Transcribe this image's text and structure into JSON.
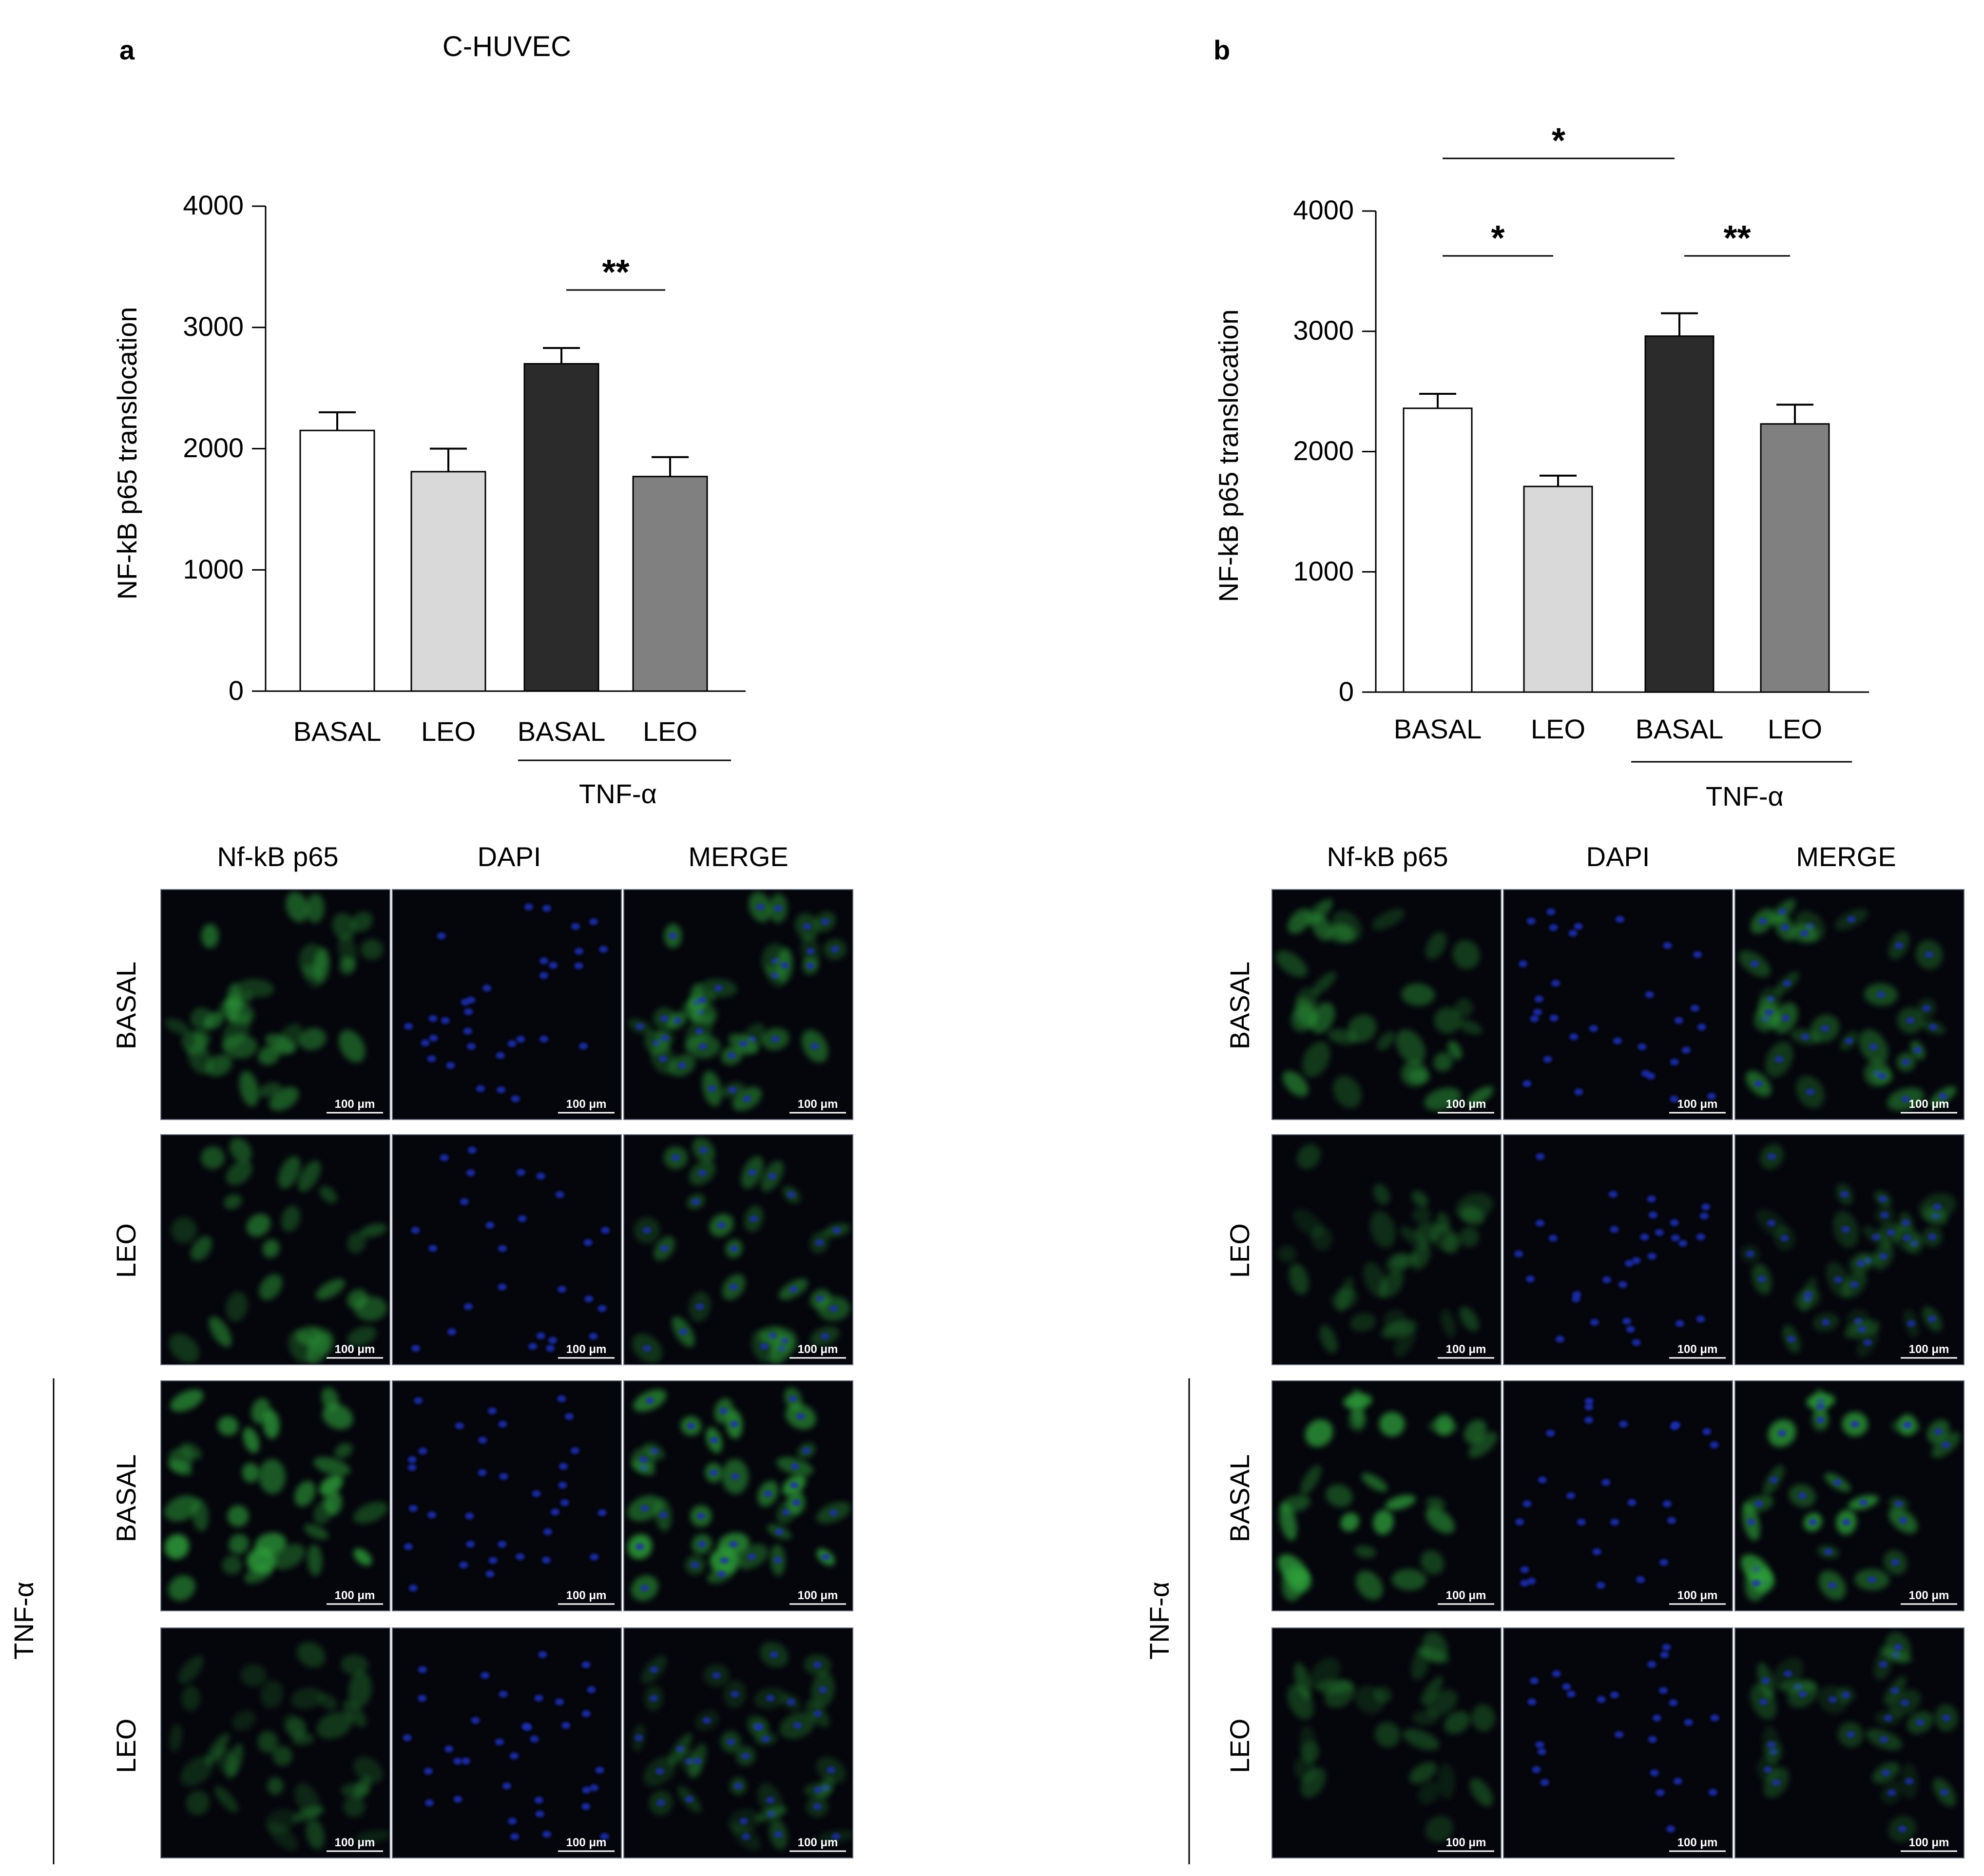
{
  "panels": [
    {
      "letter": "a",
      "title": "C-HUVEC",
      "chart_data": {
        "type": "bar",
        "categories": [
          "BASAL",
          "LEO",
          "BASAL",
          "LEO"
        ],
        "values": [
          2150,
          1810,
          2700,
          1770
        ],
        "errors": [
          150,
          190,
          130,
          160
        ],
        "bar_colors": [
          "#ffffff",
          "#d9d9d9",
          "#2b2b2b",
          "#808080"
        ],
        "ylabel": "NF-kB p65 translocation",
        "ylim": [
          0,
          4000
        ],
        "yticks": [
          "0",
          "1000",
          "2000",
          "3000",
          "4000"
        ],
        "group_label": "TNF-α",
        "significance": [
          {
            "from": 2,
            "to": 3,
            "label": "**"
          }
        ]
      }
    },
    {
      "letter": "b",
      "title": "",
      "chart_data": {
        "type": "bar",
        "categories": [
          "BASAL",
          "LEO",
          "BASAL",
          "LEO"
        ],
        "values": [
          2360,
          1710,
          2960,
          2230
        ],
        "errors": [
          120,
          90,
          190,
          160
        ],
        "bar_colors": [
          "#ffffff",
          "#d9d9d9",
          "#2b2b2b",
          "#808080"
        ],
        "ylabel": "NF-kB p65 translocation",
        "ylim": [
          0,
          4000
        ],
        "yticks": [
          "0",
          "1000",
          "2000",
          "3000",
          "4000"
        ],
        "group_label": "TNF-α",
        "significance": [
          {
            "from": 0,
            "to": 1,
            "label": "*"
          },
          {
            "from": 2,
            "to": 3,
            "label": "**"
          },
          {
            "from": 0,
            "to": 2,
            "label": "*"
          }
        ]
      }
    }
  ],
  "micrographs": {
    "columns": [
      "Nf-kB p65",
      "DAPI",
      "MERGE"
    ],
    "rows": [
      "BASAL",
      "LEO",
      "BASAL",
      "LEO"
    ],
    "group_label": "TNF-α",
    "scale_text": "100 μm",
    "channel_colors": {
      "green": "#2f9e3a",
      "blue": "#1c2fb0",
      "background": "#05050c"
    }
  }
}
